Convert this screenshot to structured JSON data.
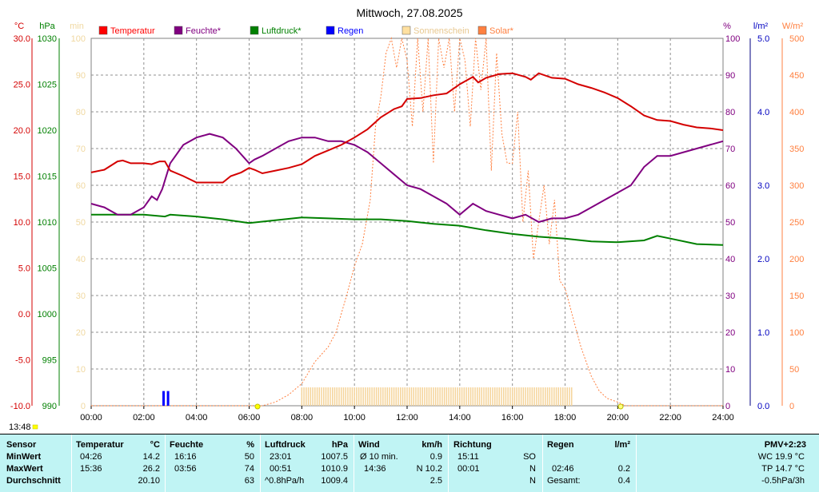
{
  "chart_data": {
    "type": "line",
    "title": "Mittwoch, 27.08.2025",
    "time_label": "13:48",
    "units": {
      "temp": "°C",
      "press": "hPa",
      "sun": "min",
      "hum": "%",
      "rain": "l/m²",
      "solar": "W/m²"
    },
    "x_ticks": [
      "00:00",
      "02:00",
      "04:00",
      "06:00",
      "08:00",
      "10:00",
      "12:00",
      "14:00",
      "16:00",
      "18:00",
      "20:00",
      "22:00",
      "24:00"
    ],
    "axes": {
      "temp": {
        "range": [
          -10,
          30
        ],
        "ticks": [
          "30.0",
          "25.0",
          "20.0",
          "15.0",
          "10.0",
          "5.0",
          "0.0",
          "-5.0",
          "-10.0"
        ]
      },
      "press": {
        "range": [
          990,
          1030
        ],
        "ticks": [
          "1030",
          "1025",
          "1020",
          "1015",
          "1010",
          "1005",
          "1000",
          "995",
          "990"
        ]
      },
      "sun": {
        "range": [
          0,
          100
        ],
        "ticks": [
          "100",
          "90",
          "80",
          "70",
          "60",
          "50",
          "40",
          "30",
          "20",
          "10",
          "0"
        ]
      },
      "hum": {
        "range": [
          0,
          100
        ],
        "ticks": [
          "100",
          "90",
          "80",
          "70",
          "60",
          "50",
          "40",
          "30",
          "20",
          "10",
          "0"
        ]
      },
      "rain": {
        "range": [
          0,
          5
        ],
        "ticks": [
          "5.0",
          "4.0",
          "3.0",
          "2.0",
          "1.0",
          "0.0"
        ]
      },
      "solar": {
        "range": [
          0,
          500
        ],
        "ticks": [
          "500",
          "450",
          "400",
          "350",
          "300",
          "250",
          "200",
          "150",
          "100",
          "50",
          "0"
        ]
      }
    },
    "legend": [
      {
        "name": "Temperatur",
        "color": "#ff0000"
      },
      {
        "name": "Feuchte*",
        "color": "#800080"
      },
      {
        "name": "Luftdruck*",
        "color": "#008000"
      },
      {
        "name": "Regen",
        "color": "#0000ff"
      },
      {
        "name": "Sonnenschein",
        "color": "#ffe0a0"
      },
      {
        "name": "Solar*",
        "color": "#ff8040"
      }
    ],
    "series": [
      {
        "name": "Temperatur",
        "axis": "temp",
        "color": "#d40000",
        "x": [
          0,
          0.5,
          1,
          1.2,
          1.5,
          2,
          2.3,
          2.6,
          2.8,
          3,
          3.5,
          4,
          5,
          5.3,
          5.7,
          6,
          6.2,
          6.5,
          7,
          7.5,
          8,
          8.5,
          9,
          9.5,
          10,
          10.5,
          11,
          11.5,
          11.8,
          12,
          12.5,
          13,
          13.5,
          13.8,
          14,
          14.5,
          14.7,
          15,
          15.5,
          16,
          16.5,
          16.7,
          17,
          17.5,
          18,
          18.5,
          19,
          19.5,
          20,
          20.5,
          21,
          21.5,
          22,
          22.5,
          23,
          23.5,
          24
        ],
        "y": [
          15.4,
          15.7,
          16.6,
          16.7,
          16.4,
          16.4,
          16.3,
          16.6,
          16.6,
          15.6,
          15.0,
          14.3,
          14.3,
          15.0,
          15.4,
          15.9,
          15.7,
          15.3,
          15.6,
          15.9,
          16.3,
          17.2,
          17.8,
          18.4,
          19.2,
          20.1,
          21.4,
          22.3,
          22.6,
          23.4,
          23.5,
          23.8,
          24.0,
          24.6,
          25.0,
          25.8,
          25.2,
          25.7,
          26.1,
          26.2,
          25.8,
          25.5,
          26.2,
          25.7,
          25.6,
          25.0,
          24.6,
          24.1,
          23.5,
          22.6,
          21.6,
          21.1,
          21.0,
          20.6,
          20.3,
          20.2,
          20.0
        ]
      },
      {
        "name": "Feuchte*",
        "axis": "hum",
        "color": "#800080",
        "x": [
          0,
          0.5,
          1,
          1.5,
          2,
          2.3,
          2.5,
          2.7,
          3,
          3.5,
          4,
          4.5,
          5,
          5.5,
          6,
          6.2,
          6.5,
          7,
          7.5,
          8,
          8.5,
          9,
          9.5,
          10,
          10.5,
          11,
          11.5,
          12,
          12.5,
          13,
          13.5,
          14,
          14.5,
          15,
          15.5,
          16,
          16.5,
          17,
          17.5,
          18,
          18.5,
          19,
          19.5,
          20,
          20.5,
          21,
          21.5,
          22,
          22.5,
          23,
          23.5,
          24
        ],
        "y": [
          55,
          54,
          52,
          52,
          54,
          57,
          56,
          59,
          66,
          71,
          73,
          74,
          73,
          70,
          66,
          67,
          68,
          70,
          72,
          73,
          73,
          72,
          72,
          71,
          69,
          66,
          63,
          60,
          59,
          57,
          55,
          52,
          55,
          53,
          52,
          51,
          52,
          50,
          51,
          51,
          52,
          54,
          56,
          58,
          60,
          65,
          68,
          68,
          69,
          70,
          71,
          72
        ]
      },
      {
        "name": "Luftdruck*",
        "axis": "press",
        "color": "#008000",
        "x": [
          0,
          1,
          2,
          2.8,
          3,
          4,
          5,
          6,
          7,
          8,
          9,
          10,
          11,
          12,
          13,
          14,
          15,
          16,
          17,
          18,
          19,
          20,
          21,
          21.5,
          22,
          23,
          24
        ],
        "y": [
          1010.8,
          1010.8,
          1010.8,
          1010.6,
          1010.8,
          1010.6,
          1010.3,
          1009.9,
          1010.2,
          1010.5,
          1010.4,
          1010.3,
          1010.3,
          1010.1,
          1009.8,
          1009.6,
          1009.1,
          1008.7,
          1008.4,
          1008.2,
          1007.9,
          1007.8,
          1008.0,
          1008.5,
          1008.2,
          1007.6,
          1007.5
        ]
      },
      {
        "name": "Solar*",
        "axis": "solar",
        "color": "#ff8040",
        "x": [
          0,
          6.5,
          7,
          7.5,
          8,
          8.5,
          9,
          9.3,
          9.7,
          10,
          10.3,
          10.6,
          10.8,
          11,
          11.2,
          11.4,
          11.6,
          11.8,
          12,
          12.2,
          12.4,
          12.6,
          12.8,
          13,
          13.2,
          13.4,
          13.6,
          13.8,
          14,
          14.2,
          14.4,
          14.6,
          14.8,
          15,
          15.2,
          15.4,
          15.6,
          15.8,
          16,
          16.2,
          16.4,
          16.6,
          16.8,
          17,
          17.2,
          17.4,
          17.6,
          17.8,
          18,
          18.3,
          18.6,
          19,
          19.3,
          19.6,
          20,
          20.3,
          24
        ],
        "y": [
          0,
          0,
          5,
          15,
          30,
          60,
          80,
          100,
          150,
          190,
          220,
          280,
          380,
          420,
          480,
          500,
          460,
          500,
          470,
          380,
          500,
          400,
          500,
          330,
          500,
          460,
          500,
          400,
          500,
          470,
          380,
          500,
          430,
          500,
          320,
          480,
          370,
          330,
          330,
          400,
          250,
          320,
          200,
          250,
          300,
          220,
          280,
          170,
          160,
          120,
          80,
          40,
          20,
          10,
          5,
          0,
          0
        ]
      }
    ],
    "rain_bars": [
      {
        "x": 2.75,
        "value": 0.2
      },
      {
        "x": 2.92,
        "value": 0.2
      }
    ],
    "sunshine_start": 8.0,
    "sunshine_end": 18.3,
    "sunshine_level": 5
  },
  "stats": {
    "header": {
      "sensor": "Sensor",
      "temp": "Temperatur",
      "temp_unit": "°C",
      "hum": "Feuchte",
      "hum_unit": "%",
      "press": "Luftdruck",
      "press_unit": "hPa",
      "wind": "Wind",
      "wind_unit": "km/h",
      "dir": "Richtung",
      "rain": "Regen",
      "rain_unit": "l/m²",
      "pmv": "PMV+2:23"
    },
    "min": {
      "label": "MinWert",
      "temp_time": "04:26",
      "temp_val": "14.2",
      "hum_time": "16:16",
      "hum_val": "50",
      "press_time": "23:01",
      "press_val": "1007.5",
      "wind_label": "Ø 10 min.",
      "wind_val": "0.9",
      "dir_time": "15:11",
      "dir_val": "SO",
      "extra": "WC 19.9 °C"
    },
    "max": {
      "label": "MaxWert",
      "temp_time": "15:36",
      "temp_val": "26.2",
      "hum_time": "03:56",
      "hum_val": "74",
      "press_time": "00:51",
      "press_val": "1010.9",
      "wind_time": "14:36",
      "wind_val": "N 10.2",
      "dir_time": "00:01",
      "dir_val": "N",
      "rain_time": "02:46",
      "rain_val": "0.2",
      "extra": "TP 14.7 °C"
    },
    "avg": {
      "label": "Durchschnitt",
      "temp_val": "20.10",
      "hum_val": "63",
      "press_trend": "^0.8hPa/h",
      "press_val": "1009.4",
      "wind_val": "2.5",
      "dir_val": "N",
      "rain_label": "Gesamt:",
      "rain_val": "0.4",
      "extra": "-0.5hPa/3h"
    }
  }
}
